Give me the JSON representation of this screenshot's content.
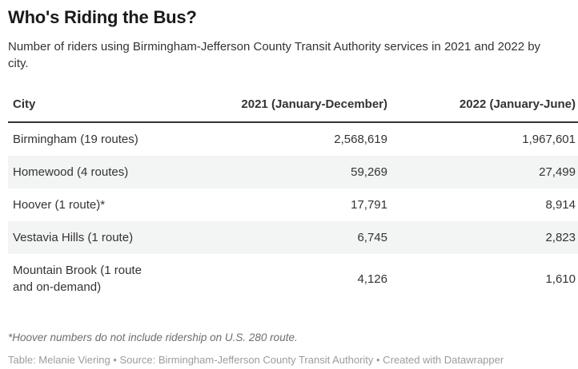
{
  "header": {
    "title": "Who's Riding the Bus?",
    "subtitle": "Number of riders using Birmingham-Jefferson County Transit Authority services in 2021 and 2022 by city."
  },
  "table": {
    "columns": [
      "City",
      "2021 (January-December)",
      "2022 (January-June)"
    ],
    "rows": [
      {
        "city": "Birmingham (19 routes)",
        "y2021": "2,568,619",
        "y2022": "1,967,601"
      },
      {
        "city": "Homewood (4 routes)",
        "y2021": "59,269",
        "y2022": "27,499"
      },
      {
        "city": "Hoover (1 route)*",
        "y2021": "17,791",
        "y2022": "8,914"
      },
      {
        "city": "Vestavia Hills (1 route)",
        "y2021": "6,745",
        "y2022": "2,823"
      },
      {
        "city": "Mountain Brook (1 route and on-demand)",
        "y2021": "4,126",
        "y2022": "1,610"
      }
    ]
  },
  "footer": {
    "footnote": "*Hoover numbers do not include ridership on U.S. 280 route.",
    "attribution": "Table: Melanie Viering • Source: Birmingham-Jefferson County Transit Authority • Created with Datawrapper"
  },
  "colors": {
    "title_text": "#1a1a1a",
    "body_text": "#333333",
    "header_rule": "#333333",
    "row_stripe": "#f3f4f4",
    "footnote_text": "#6e6e6e",
    "attribution_text": "#9c9c9c",
    "background": "#ffffff"
  },
  "chart_data": {
    "type": "table",
    "title": "Who's Riding the Bus?",
    "subtitle": "Number of riders using Birmingham-Jefferson County Transit Authority services in 2021 and 2022 by city.",
    "columns": [
      "City",
      "2021 (January-December)",
      "2022 (January-June)"
    ],
    "rows": [
      [
        "Birmingham (19 routes)",
        2568619,
        1967601
      ],
      [
        "Homewood (4 routes)",
        59269,
        27499
      ],
      [
        "Hoover (1 route)*",
        17791,
        8914
      ],
      [
        "Vestavia Hills (1 route)",
        6745,
        2823
      ],
      [
        "Mountain Brook (1 route and on-demand)",
        4126,
        1610
      ]
    ],
    "footnote": "*Hoover numbers do not include ridership on U.S. 280 route.",
    "layout_hints": {
      "zebra_striping": true,
      "numeric_columns_right_aligned": true,
      "grid": "off"
    }
  }
}
